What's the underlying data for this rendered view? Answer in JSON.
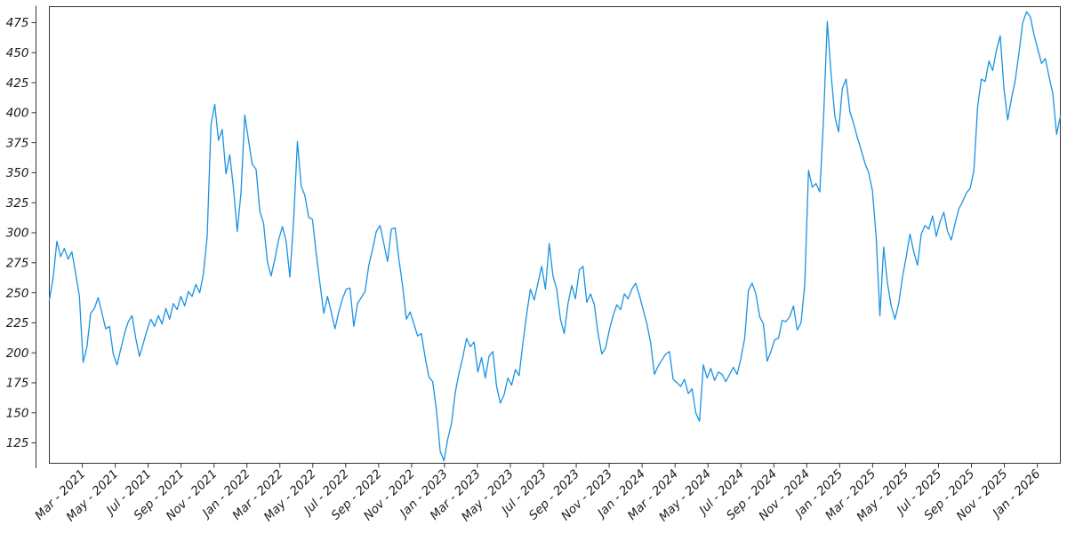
{
  "chart_data": {
    "type": "line",
    "title": "",
    "xlabel": "",
    "ylabel": "",
    "legend": false,
    "grid": false,
    "line_color": "#1a93e1",
    "axis_color": "#333333",
    "tick_label_color": "#1a1a1a",
    "y_tick_labels": [
      125,
      150,
      175,
      200,
      225,
      250,
      275,
      300,
      325,
      350,
      375,
      400,
      425,
      450,
      475
    ],
    "x_tick_labels": [
      "Mar - 2021",
      "May - 2021",
      "Jul - 2021",
      "Sep - 2021",
      "Nov - 2021",
      "Jan - 2022",
      "Mar - 2022",
      "May - 2022",
      "Jul - 2022",
      "Sep - 2022",
      "Nov - 2022",
      "Jan - 2023",
      "Mar - 2023",
      "May - 2023",
      "Jul - 2023",
      "Sep - 2023",
      "Nov - 2023",
      "Jan - 2024",
      "Mar - 2024",
      "May - 2024",
      "Jul - 2024",
      "Sep - 2024",
      "Nov - 2024",
      "Jan - 2025",
      "Mar - 2025",
      "May - 2025",
      "Jul - 2025",
      "Sep - 2025",
      "Nov - 2025",
      "Jan - 2026"
    ],
    "x_start_label": "Jan 2021",
    "x_end_label": "Feb 2026",
    "x_range_months": 61.4,
    "tick_every_months": 2,
    "first_tick_month_offset": 2,
    "ylim": [
      108,
      488.3
    ],
    "sampling": "approx weekly samples, left edge Jan 2021 to right edge Feb 2026",
    "series": [
      {
        "name": "value",
        "values": [
          244,
          262,
          293,
          280,
          287,
          278,
          284,
          266,
          247,
          192,
          205,
          233,
          237,
          246,
          233,
          220,
          222,
          199,
          190,
          203,
          216,
          226,
          231,
          212,
          197,
          208,
          219,
          228,
          222,
          231,
          224,
          237,
          228,
          241,
          236,
          247,
          239,
          251,
          247,
          257,
          250,
          266,
          297,
          390,
          407,
          377,
          386,
          349,
          365,
          337,
          301,
          334,
          398,
          377,
          357,
          353,
          318,
          308,
          276,
          264,
          278,
          294,
          305,
          293,
          263,
          310,
          376,
          339,
          331,
          313,
          311,
          283,
          258,
          233,
          247,
          234,
          220,
          234,
          245,
          253,
          254,
          222,
          241,
          246,
          251,
          273,
          286,
          301,
          306,
          291,
          276,
          303,
          304,
          278,
          256,
          228,
          234,
          224,
          214,
          216,
          196,
          180,
          176,
          152,
          118,
          110,
          128,
          141,
          167,
          183,
          196,
          212,
          205,
          209,
          184,
          196,
          179,
          197,
          201,
          172,
          158,
          165,
          179,
          173,
          186,
          181,
          208,
          232,
          253,
          244,
          258,
          272,
          253,
          291,
          264,
          253,
          228,
          216,
          241,
          256,
          245,
          269,
          272,
          242,
          249,
          240,
          216,
          199,
          204,
          219,
          231,
          240,
          236,
          249,
          245,
          253,
          258,
          248,
          236,
          224,
          208,
          182,
          189,
          194,
          199,
          201,
          178,
          175,
          172,
          178,
          166,
          170,
          150,
          143,
          190,
          179,
          187,
          177,
          184,
          182,
          176,
          182,
          188,
          182,
          195,
          212,
          252,
          258,
          249,
          230,
          224,
          193,
          201,
          211,
          212,
          227,
          226,
          230,
          239,
          219,
          225,
          257,
          352,
          338,
          341,
          334,
          395,
          476,
          432,
          397,
          384,
          420,
          428,
          401,
          391,
          379,
          369,
          358,
          350,
          335,
          296,
          231,
          288,
          258,
          239,
          228,
          241,
          263,
          280,
          299,
          284,
          273,
          299,
          306,
          303,
          314,
          297,
          309,
          317,
          301,
          294,
          308,
          320,
          326,
          333,
          337,
          352,
          405,
          428,
          426,
          443,
          435,
          452,
          464,
          420,
          394,
          412,
          427,
          450,
          475,
          484,
          480,
          465,
          453,
          441,
          445,
          430,
          416,
          382,
          397
        ]
      }
    ],
    "observed_extremes": {
      "min": 110,
      "min_at": "Jan 2023",
      "max": 484,
      "max_at": "Dec 2025",
      "secondary_peaks": [
        {
          "value": 409,
          "at": "Nov 2021"
        },
        {
          "value": 401,
          "at": "Jan 2022"
        },
        {
          "value": 478,
          "at": "Dec 2024"
        }
      ]
    }
  }
}
